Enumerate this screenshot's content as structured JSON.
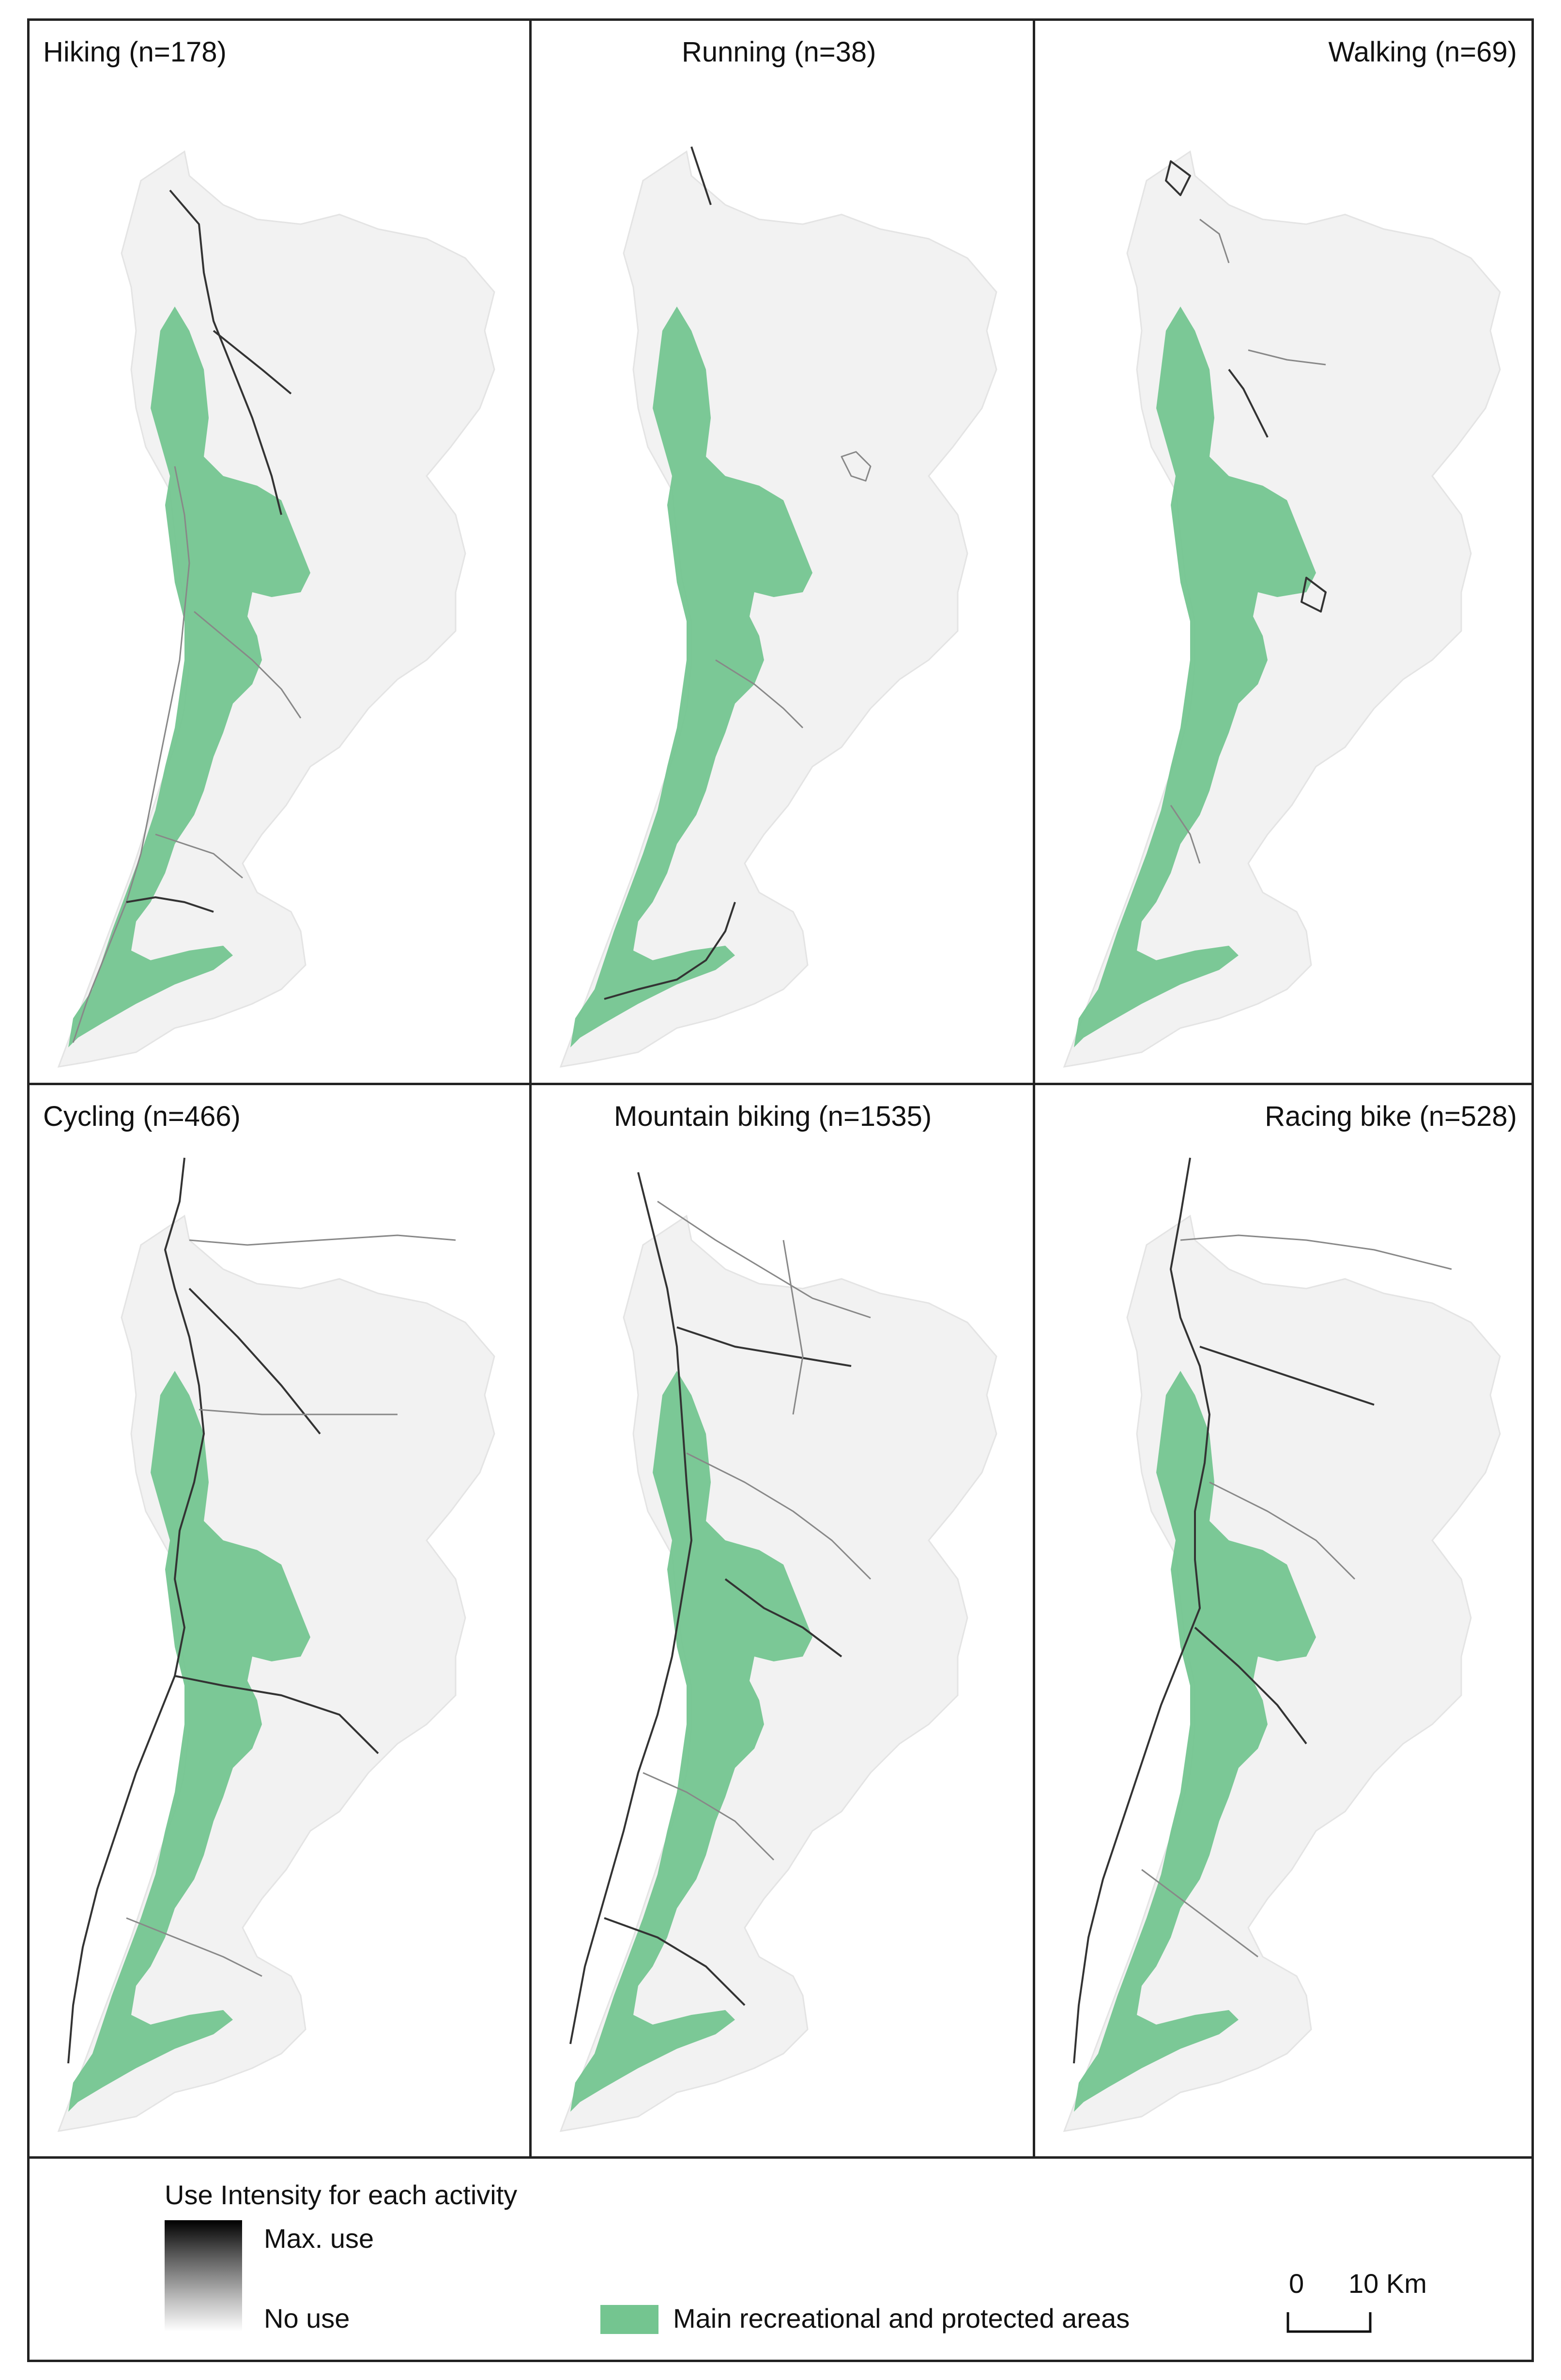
{
  "panels": [
    {
      "title": "Hiking (n=178)",
      "align": "left"
    },
    {
      "title": "Running (n=38)",
      "align": "center"
    },
    {
      "title": "Walking (n=69)",
      "align": "right"
    },
    {
      "title": "Cycling (n=466)",
      "align": "left"
    },
    {
      "title": "Mountain biking (n=1535)",
      "align": "center"
    },
    {
      "title": "Racing bike (n=528)",
      "align": "right"
    }
  ],
  "legend": {
    "intensity_title": "Use Intensity for each activity",
    "max_label": "Max. use",
    "min_label": "No use",
    "area_label": "Main recreational and protected areas",
    "area_color": "#74c590",
    "scale_zero": "0",
    "scale_label": "10 Km"
  }
}
